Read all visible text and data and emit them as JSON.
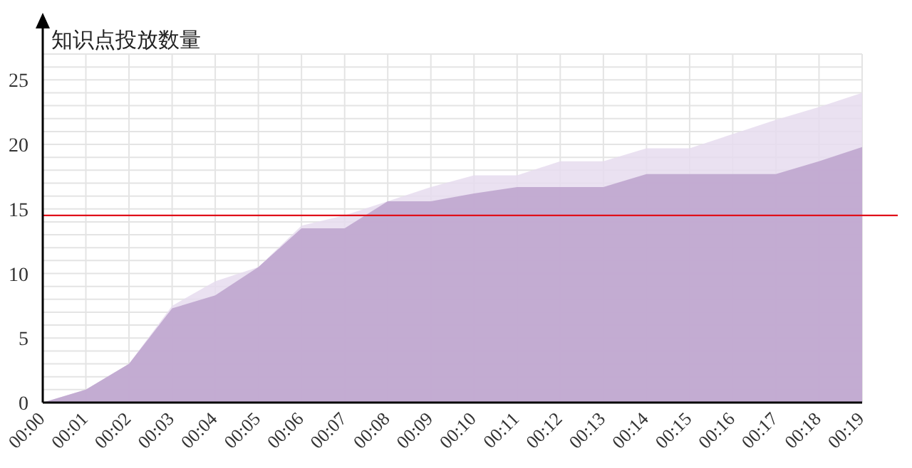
{
  "chart_data": {
    "type": "area",
    "ylabel": "知识点投放数量",
    "categories": [
      "00:00",
      "00:01",
      "00:02",
      "00:03",
      "00:04",
      "00:05",
      "00:06",
      "00:07",
      "00:08",
      "00:09",
      "00:10",
      "00:11",
      "00:12",
      "00:13",
      "00:14",
      "00:15",
      "00:16",
      "00:17",
      "00:18",
      "00:19"
    ],
    "series": [
      {
        "color": "#e6dcee",
        "values": [
          0,
          1,
          3,
          7.5,
          9.4,
          10.5,
          13.7,
          14.5,
          15.6,
          16.7,
          17.6,
          17.6,
          18.7,
          18.7,
          19.7,
          19.7,
          20.8,
          21.9,
          22.9,
          24
        ]
      },
      {
        "color": "#bca2cc",
        "values": [
          0,
          1,
          3,
          7.3,
          8.3,
          10.5,
          13.5,
          13.5,
          15.6,
          15.6,
          16.2,
          16.7,
          16.7,
          16.7,
          17.7,
          17.7,
          17.7,
          17.7,
          18.7,
          19.8
        ]
      }
    ],
    "ylim": [
      0,
      27
    ],
    "yticks": [
      0,
      5,
      10,
      15,
      20,
      25
    ],
    "grid": true,
    "ref_lines": [
      {
        "axis": "y",
        "value": 14.5,
        "color": "#e0101a"
      }
    ]
  }
}
